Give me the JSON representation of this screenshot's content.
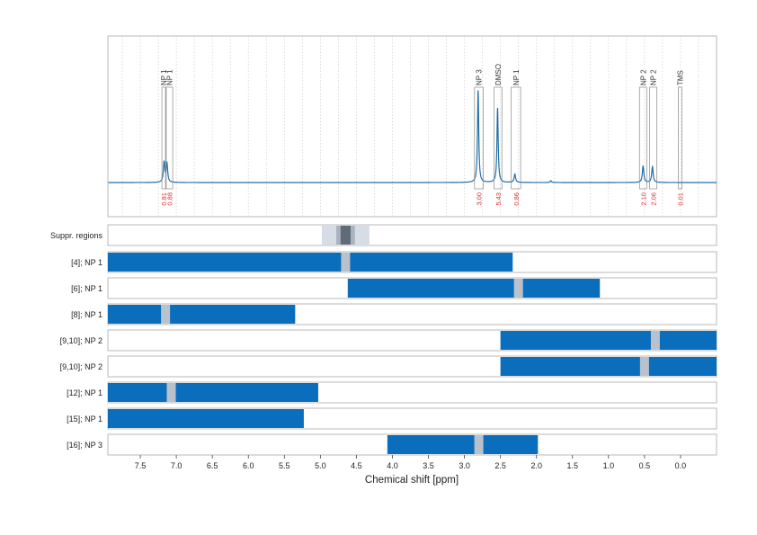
{
  "chart_data": {
    "type": "line",
    "title": "",
    "xlabel": "Chemical shift [ppm]",
    "xlim": [
      7.95,
      -0.5
    ],
    "x_reversed": true,
    "x_ticks": [
      "7.5",
      "7.0",
      "6.5",
      "6.0",
      "5.5",
      "5.0",
      "4.5",
      "4.0",
      "3.5",
      "3.0",
      "2.5",
      "2.0",
      "1.5",
      "1.0",
      "0.5",
      "0.0"
    ],
    "grid": "vertical dotted",
    "colors": {
      "spectrum": "#1f6fa8",
      "bar": "#0a6ebd",
      "gap": "#b9c2cc",
      "integral_label": "#e03030",
      "frame": "#b8b8b8",
      "suppr_outer": "#d6dde4",
      "suppr_mid": "#aab4bf",
      "suppr_core": "#5e6b78"
    },
    "spectrum": {
      "series_name": "",
      "peaks": [
        {
          "x": 7.17,
          "h": 0.22,
          "w": 0.012
        },
        {
          "x": 7.13,
          "h": 0.2,
          "w": 0.012
        },
        {
          "x": 2.81,
          "h": 1.0,
          "w": 0.01
        },
        {
          "x": 2.54,
          "h": 0.81,
          "w": 0.01
        },
        {
          "x": 2.3,
          "h": 0.09,
          "w": 0.012
        },
        {
          "x": 0.52,
          "h": 0.18,
          "w": 0.012
        },
        {
          "x": 0.39,
          "h": 0.17,
          "w": 0.012
        },
        {
          "x": 1.8,
          "h": 0.02,
          "w": 0.01
        }
      ]
    },
    "assignments": [
      {
        "label": "NP 1",
        "x_start": 7.2,
        "x_end": 7.15,
        "integral": "0.81"
      },
      {
        "label": "NP 1",
        "x_start": 7.14,
        "x_end": 7.05,
        "integral": "0.88"
      },
      {
        "label": "NP 3",
        "x_start": 2.86,
        "x_end": 2.74,
        "integral": "3.00"
      },
      {
        "label": "DMSO",
        "x_start": 2.59,
        "x_end": 2.48,
        "integral": "5.43"
      },
      {
        "label": "NP 1",
        "x_start": 2.35,
        "x_end": 2.22,
        "integral": "0.86"
      },
      {
        "label": "NP 2",
        "x_start": 0.57,
        "x_end": 0.47,
        "integral": "2.10"
      },
      {
        "label": "NP 2",
        "x_start": 0.43,
        "x_end": 0.33,
        "integral": "2.06"
      },
      {
        "label": "TMS",
        "x_start": 0.03,
        "x_end": -0.02,
        "integral": "0.01"
      }
    ],
    "suppression": {
      "label": "Suppr. regions",
      "outer": [
        4.98,
        4.32
      ],
      "mid": [
        4.78,
        4.52
      ],
      "core": [
        4.72,
        4.58
      ]
    },
    "regions": [
      {
        "label": "[4]; NP 1",
        "x_start": 7.95,
        "x_end": 2.33,
        "gaps": [
          4.65
        ]
      },
      {
        "label": "[6]; NP 1",
        "x_start": 4.62,
        "x_end": 1.12,
        "gaps": [
          2.25
        ]
      },
      {
        "label": "[8]; NP 1",
        "x_start": 7.95,
        "x_end": 5.35,
        "gaps": [
          7.15
        ]
      },
      {
        "label": "[9,10]; NP 2",
        "x_start": 2.5,
        "x_end": -0.5,
        "gaps": [
          0.35
        ]
      },
      {
        "label": "[9,10]; NP 2",
        "x_start": 2.5,
        "x_end": -0.5,
        "gaps": [
          0.5
        ]
      },
      {
        "label": "[12]; NP 1",
        "x_start": 7.95,
        "x_end": 5.03,
        "gaps": [
          7.07
        ]
      },
      {
        "label": "[15]; NP 1",
        "x_start": 7.95,
        "x_end": 5.23,
        "gaps": []
      },
      {
        "label": "[16]; NP 3",
        "x_start": 4.07,
        "x_end": 1.98,
        "gaps": [
          2.8
        ]
      }
    ]
  }
}
